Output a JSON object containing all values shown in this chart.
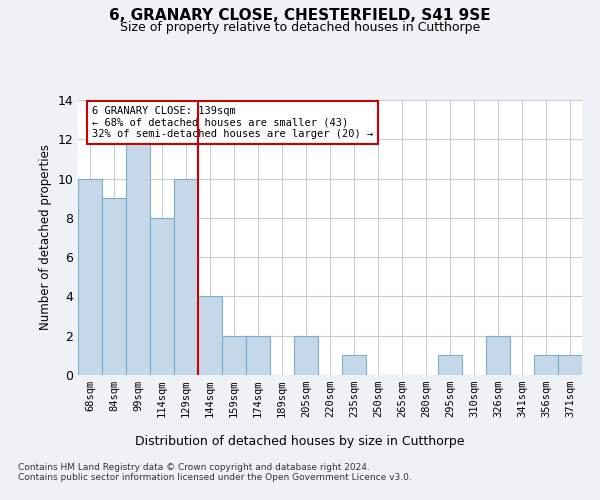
{
  "title": "6, GRANARY CLOSE, CHESTERFIELD, S41 9SE",
  "subtitle": "Size of property relative to detached houses in Cutthorpe",
  "xlabel": "Distribution of detached houses by size in Cutthorpe",
  "ylabel": "Number of detached properties",
  "categories": [
    "68sqm",
    "84sqm",
    "99sqm",
    "114sqm",
    "129sqm",
    "144sqm",
    "159sqm",
    "174sqm",
    "189sqm",
    "205sqm",
    "220sqm",
    "235sqm",
    "250sqm",
    "265sqm",
    "280sqm",
    "295sqm",
    "310sqm",
    "326sqm",
    "341sqm",
    "356sqm",
    "371sqm"
  ],
  "values": [
    10,
    9,
    12,
    8,
    10,
    4,
    2,
    2,
    0,
    2,
    0,
    1,
    0,
    0,
    0,
    1,
    0,
    2,
    0,
    1,
    1
  ],
  "bar_color": "#c5d8ea",
  "bar_edge_color": "#7aaec8",
  "vline_x": 4.5,
  "vline_color": "#cc0000",
  "annotation_text": "6 GRANARY CLOSE: 139sqm\n← 68% of detached houses are smaller (43)\n32% of semi-detached houses are larger (20) →",
  "annotation_box_color": "#ffffff",
  "annotation_box_edge_color": "#cc0000",
  "ylim": [
    0,
    14
  ],
  "yticks": [
    0,
    2,
    4,
    6,
    8,
    10,
    12,
    14
  ],
  "footer": "Contains HM Land Registry data © Crown copyright and database right 2024.\nContains public sector information licensed under the Open Government Licence v3.0.",
  "bg_color": "#eef2f7",
  "plot_bg_color": "#ffffff",
  "grid_color": "#cccccc"
}
